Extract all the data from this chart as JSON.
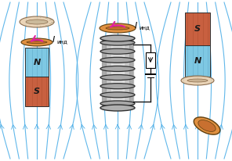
{
  "bg_color": "#ffffff",
  "magnet_N_color": "#7ec8e3",
  "magnet_S_color": "#c86040",
  "ring_orange_color": "#e09040",
  "ring_orange_inner": "#c87030",
  "ring_pale_color": "#e8d0b0",
  "ring_pale_inner": "#d4b898",
  "coil_body_color": "#c0c0c0",
  "coil_dark": "#505050",
  "field_line_color": "#50b0e8",
  "arrow_color": "#e020a0",
  "text_color": "#000000",
  "stripe_N_color": "#60a8c8",
  "stripe_S_color": "#b05030",
  "N_label": "N",
  "S_label": "S",
  "fig_width": 2.96,
  "fig_height": 2.06,
  "dpi": 100
}
